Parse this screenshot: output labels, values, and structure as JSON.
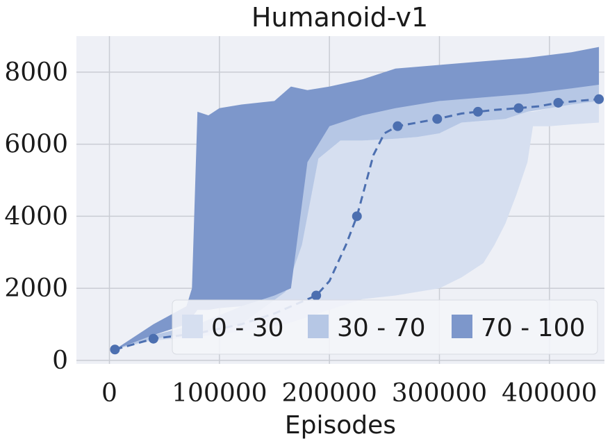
{
  "chart_data": {
    "type": "area",
    "title": "Humanoid-v1",
    "xlabel": "Episodes",
    "ylabel": "",
    "xlim": [
      -30000,
      450000
    ],
    "ylim": [
      -100,
      9000
    ],
    "xticks": [
      0,
      100000,
      200000,
      300000,
      400000
    ],
    "xtick_labels": [
      "0",
      "100000",
      "200000",
      "300000",
      "400000"
    ],
    "yticks": [
      0,
      2000,
      4000,
      6000,
      8000
    ],
    "ytick_labels": [
      "0",
      "2000",
      "4000",
      "6000",
      "8000"
    ],
    "grid": true,
    "legend_position": "lower-right",
    "colors": {
      "band_0_30": "#d6dff0",
      "band_30_70": "#b6c7e5",
      "band_70_100": "#7d97cb",
      "median": "#4c6fb0",
      "grid": "#c9ccd3",
      "background": "#eef0f6"
    },
    "series": [
      {
        "name": "0 - 30",
        "x": [
          5000,
          40000,
          80000,
          120000,
          160000,
          175000,
          190000,
          210000,
          230000,
          260000,
          280000,
          300000,
          320000,
          340000,
          350000,
          360000,
          370000,
          380000,
          385000,
          400000,
          420000,
          445000
        ],
        "lower": [
          300,
          550,
          650,
          800,
          1000,
          1150,
          1300,
          1500,
          1700,
          1800,
          1900,
          2000,
          2300,
          2700,
          3200,
          3800,
          4600,
          5500,
          6500,
          6500,
          6550,
          6600
        ],
        "upper": [
          300,
          600,
          750,
          1000,
          1900,
          3200,
          5600,
          6100,
          6100,
          6150,
          6200,
          6300,
          6600,
          6650,
          6700,
          6700,
          6800,
          6900,
          6900,
          7000,
          7100,
          7200
        ]
      },
      {
        "name": "30 - 70",
        "x": [
          5000,
          40000,
          80000,
          120000,
          160000,
          175000,
          190000,
          210000,
          230000,
          260000,
          280000,
          300000,
          320000,
          340000,
          360000,
          380000,
          400000,
          420000,
          445000
        ],
        "lower": [
          300,
          600,
          750,
          1000,
          1900,
          3200,
          5600,
          6100,
          6100,
          6150,
          6200,
          6300,
          6600,
          6650,
          6700,
          6900,
          7000,
          7100,
          7200
        ],
        "upper": [
          300,
          700,
          1000,
          1500,
          2000,
          5500,
          6500,
          6800,
          7000,
          7100,
          7200,
          7250,
          7300,
          7350,
          7400,
          7450,
          7500,
          7600,
          7650
        ]
      },
      {
        "name": "70 - 100",
        "x": [
          5000,
          40000,
          70000,
          75000,
          80000,
          90000,
          100000,
          120000,
          150000,
          165000,
          180000,
          200000,
          230000,
          260000,
          300000,
          340000,
          380000,
          420000,
          445000
        ],
        "lower": [
          300,
          700,
          1000,
          1200,
          1400,
          1400,
          1450,
          1500,
          1800,
          2000,
          5500,
          6500,
          6800,
          7000,
          7200,
          7300,
          7400,
          7550,
          7650
        ],
        "upper": [
          300,
          1000,
          1500,
          2000,
          6900,
          6800,
          7000,
          7100,
          7200,
          7600,
          7500,
          7600,
          7800,
          8100,
          8200,
          8300,
          8400,
          8550,
          8700
        ]
      },
      {
        "name": "",
        "type": "line",
        "style": "dashed",
        "x": [
          5000,
          40000,
          80000,
          120000,
          150000,
          188000,
          200000,
          215000,
          225000,
          240000,
          250000,
          262000,
          280000,
          298000,
          320000,
          335000,
          350000,
          372000,
          390000,
          408000,
          425000,
          445000
        ],
        "y": [
          300,
          600,
          750,
          1000,
          1300,
          1800,
          2200,
          3200,
          4000,
          5700,
          6300,
          6500,
          6600,
          6700,
          6850,
          6900,
          6950,
          7000,
          7050,
          7150,
          7200,
          7250
        ],
        "markers_x": [
          5000,
          40000,
          188000,
          225000,
          262000,
          298000,
          335000,
          372000,
          408000,
          445000
        ],
        "markers_y": [
          300,
          600,
          1800,
          4000,
          6500,
          6700,
          6900,
          7000,
          7150,
          7250
        ]
      }
    ]
  }
}
